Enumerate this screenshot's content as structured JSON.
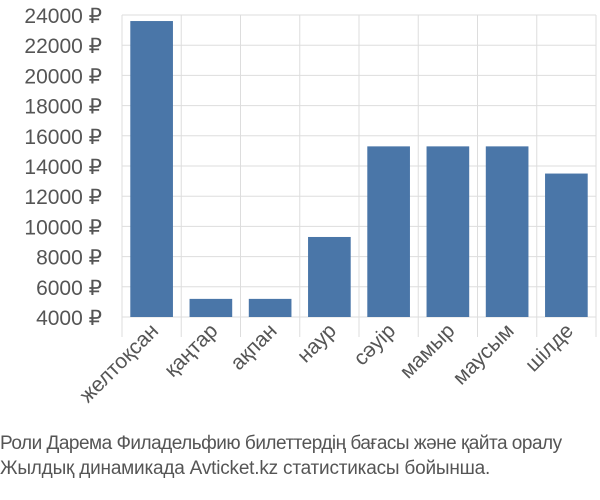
{
  "chart_data": {
    "type": "bar",
    "categories": [
      "желтоқсан",
      "қаңтар",
      "ақпан",
      "наур",
      "сәуір",
      "мамыр",
      "маусым",
      "шілде"
    ],
    "values": [
      23600,
      5200,
      5200,
      9300,
      15300,
      15300,
      15300,
      13500
    ],
    "ylim": [
      4000,
      24000
    ],
    "yticks": [
      4000,
      6000,
      8000,
      10000,
      12000,
      14000,
      16000,
      18000,
      20000,
      22000,
      24000
    ],
    "ytick_labels": [
      "4000 ₽",
      "6000 ₽",
      "8000 ₽",
      "10000 ₽",
      "12000 ₽",
      "14000 ₽",
      "16000 ₽",
      "18000 ₽",
      "20000 ₽",
      "22000 ₽",
      "24000 ₽"
    ],
    "grid": true,
    "bar_color": "#4a76a8",
    "title": "",
    "xlabel": "",
    "ylabel": ""
  },
  "caption": {
    "line1": "Роли Дарема Филадельфию билеттердің бағасы және қайта оралу",
    "line2": "Жылдық динамикада Avticket.kz статистикасы бойынша."
  }
}
